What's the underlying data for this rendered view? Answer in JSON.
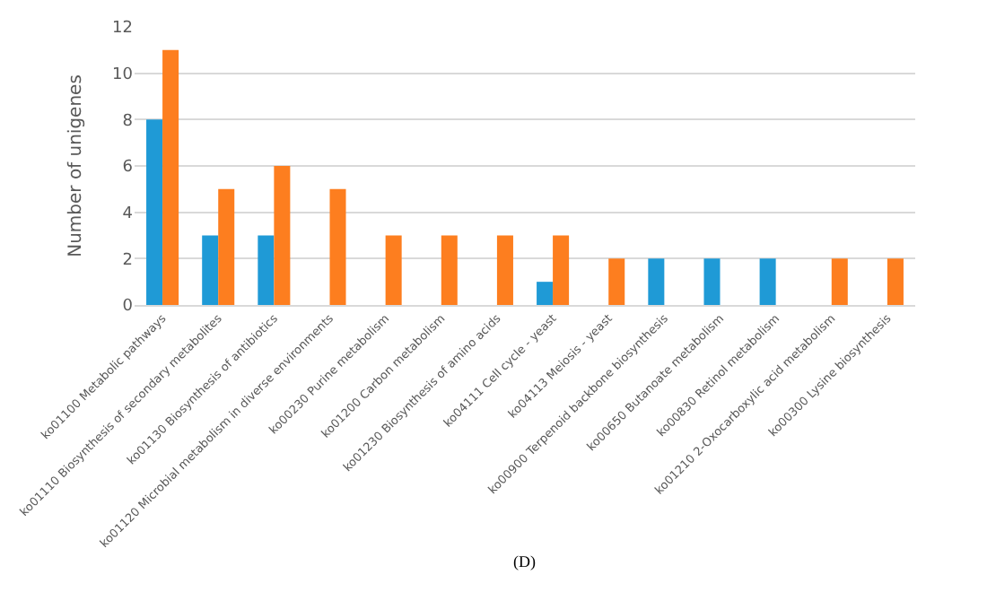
{
  "chart_data": {
    "type": "bar",
    "ylabel": "Number of unigenes",
    "categories": [
      "ko01100 Metabolic pathways",
      "ko01110 Biosynthesis of secondary metabolites",
      "ko01130 Biosynthesis of antibiotics",
      "ko01120 Microbial metabolism in diverse environments",
      "ko00230 Purine metabolism",
      "ko01200 Carbon metabolism",
      "ko01230 Biosynthesis of amino acids",
      "ko04111 Cell cycle - yeast",
      "ko04113 Meiosis - yeast",
      "ko00900 Terpenoid backbone biosynthesis",
      "ko00650 Butanoate metabolism",
      "ko00830 Retinol metabolism",
      "ko01210 2-Oxocarboxylic acid metabolism",
      "ko00300 Lysine biosynthesis"
    ],
    "series": [
      {
        "color": "#1f9ad6",
        "values": [
          8,
          3,
          3,
          null,
          null,
          null,
          null,
          1,
          null,
          2,
          2,
          2,
          null,
          null
        ]
      },
      {
        "color": "#fd7e1f",
        "values": [
          11,
          5,
          6,
          5,
          3,
          3,
          3,
          3,
          2,
          null,
          null,
          null,
          2,
          2
        ]
      }
    ],
    "ylim": [
      0,
      12
    ],
    "yticks": [
      0,
      2,
      4,
      6,
      8,
      10,
      12
    ],
    "grid": "y",
    "annotations": [
      "(D)"
    ]
  }
}
